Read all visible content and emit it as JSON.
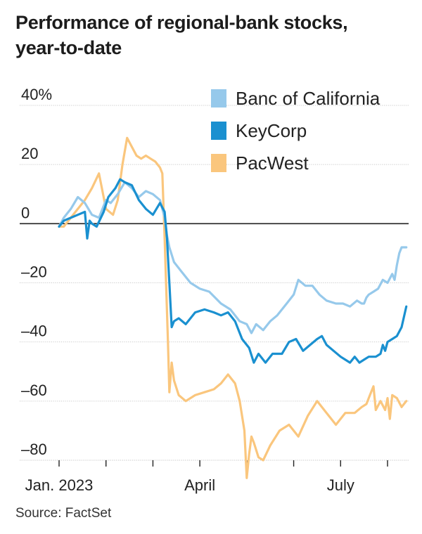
{
  "chart_data": {
    "type": "line",
    "title_lines": [
      "Performance of regional-bank stocks,",
      "year-to-date"
    ],
    "source": "Source: FactSet",
    "xlabel": "",
    "ylabel": "",
    "ylim": [
      -80,
      40
    ],
    "xlim": [
      0,
      7.45
    ],
    "y_ticks": [
      {
        "value": 40,
        "label": "40%"
      },
      {
        "value": 20,
        "label": "20"
      },
      {
        "value": 0,
        "label": "0"
      },
      {
        "value": -20,
        "label": "–20"
      },
      {
        "value": -40,
        "label": "–40"
      },
      {
        "value": -60,
        "label": "–60"
      },
      {
        "value": -80,
        "label": "–80"
      }
    ],
    "x_ticks": [
      0,
      1,
      2,
      3,
      4,
      5,
      6,
      7
    ],
    "x_labels": [
      {
        "value": 0,
        "label": "Jan. 2023"
      },
      {
        "value": 3,
        "label": "April"
      },
      {
        "value": 6,
        "label": "July"
      }
    ],
    "series": [
      {
        "name": "PacWest",
        "color": "#fac67d",
        "x": [
          0,
          0.1,
          0.25,
          0.4,
          0.55,
          0.7,
          0.85,
          1.0,
          1.15,
          1.25,
          1.35,
          1.45,
          1.55,
          1.65,
          1.75,
          1.85,
          1.95,
          2.05,
          2.15,
          2.2,
          2.25,
          2.28,
          2.32,
          2.35,
          2.4,
          2.45,
          2.55,
          2.7,
          2.9,
          3.1,
          3.3,
          3.45,
          3.6,
          3.75,
          3.85,
          3.95,
          4.0,
          4.05,
          4.1,
          4.15,
          4.25,
          4.35,
          4.5,
          4.7,
          4.9,
          5.1,
          5.3,
          5.5,
          5.7,
          5.9,
          6.1,
          6.3,
          6.45,
          6.55,
          6.6,
          6.65,
          6.7,
          6.75,
          6.85,
          6.95,
          7.0,
          7.05,
          7.1,
          7.2,
          7.3,
          7.4
        ],
        "values": [
          -1,
          -1,
          2,
          5,
          8,
          12,
          17,
          5,
          3,
          8,
          20,
          29,
          26,
          23,
          22,
          23,
          22,
          21,
          19,
          17,
          -5,
          -20,
          -40,
          -57,
          -47,
          -53,
          -58,
          -60,
          -58,
          -57,
          -56,
          -54,
          -51,
          -54,
          -60,
          -70,
          -86,
          -78,
          -72,
          -74,
          -79,
          -80,
          -75,
          -70,
          -68,
          -72,
          -65,
          -60,
          -64,
          -68,
          -64,
          -64,
          -62,
          -61,
          -59,
          -57,
          -55,
          -63,
          -60,
          -63,
          -59,
          -66,
          -58,
          -59,
          -62,
          -60
        ]
      },
      {
        "name": "Banc of California",
        "color": "#96c9eb",
        "x": [
          0,
          0.1,
          0.25,
          0.4,
          0.55,
          0.7,
          0.85,
          1.0,
          1.1,
          1.25,
          1.4,
          1.55,
          1.7,
          1.85,
          2.0,
          2.15,
          2.25,
          2.3,
          2.35,
          2.45,
          2.6,
          2.8,
          3.0,
          3.2,
          3.45,
          3.65,
          3.85,
          4.0,
          4.1,
          4.2,
          4.35,
          4.5,
          4.65,
          4.85,
          5.0,
          5.1,
          5.25,
          5.4,
          5.55,
          5.7,
          5.9,
          6.05,
          6.2,
          6.35,
          6.45,
          6.5,
          6.55,
          6.6,
          6.7,
          6.8,
          6.9,
          7.0,
          7.1,
          7.15,
          7.2,
          7.25,
          7.3,
          7.4
        ],
        "values": [
          -1,
          2,
          5,
          9,
          7,
          3,
          2,
          8,
          7,
          10,
          14,
          12,
          9,
          11,
          10,
          8,
          2,
          -4,
          -8,
          -13,
          -16,
          -20,
          -22,
          -23,
          -27,
          -29,
          -33,
          -34,
          -37,
          -34,
          -36,
          -33,
          -31,
          -27,
          -24,
          -19,
          -21,
          -21,
          -24,
          -26,
          -27,
          -27,
          -28,
          -26,
          -27,
          -27,
          -25,
          -24,
          -23,
          -22,
          -19,
          -20,
          -17,
          -19,
          -14,
          -10,
          -8,
          -8
        ]
      },
      {
        "name": "KeyCorp",
        "color": "#1a90d0",
        "x": [
          0,
          0.1,
          0.25,
          0.4,
          0.55,
          0.6,
          0.65,
          0.7,
          0.8,
          0.95,
          1.05,
          1.2,
          1.3,
          1.4,
          1.55,
          1.7,
          1.85,
          2.0,
          2.15,
          2.25,
          2.3,
          2.35,
          2.4,
          2.45,
          2.55,
          2.7,
          2.9,
          3.1,
          3.3,
          3.45,
          3.6,
          3.75,
          3.9,
          4.05,
          4.15,
          4.25,
          4.4,
          4.55,
          4.75,
          4.9,
          5.05,
          5.2,
          5.35,
          5.5,
          5.6,
          5.7,
          5.85,
          6.0,
          6.1,
          6.2,
          6.3,
          6.4,
          6.5,
          6.6,
          6.75,
          6.85,
          6.9,
          6.95,
          7.0,
          7.1,
          7.2,
          7.3,
          7.4
        ],
        "values": [
          -1,
          1,
          2,
          3,
          4,
          -5,
          1,
          0,
          -1,
          4,
          9,
          12,
          15,
          14,
          13,
          8,
          5,
          3,
          7,
          4,
          -5,
          -20,
          -35,
          -33,
          -32,
          -34,
          -30,
          -29,
          -30,
          -31,
          -30,
          -33,
          -39,
          -42,
          -47,
          -44,
          -47,
          -44,
          -44,
          -40,
          -39,
          -43,
          -41,
          -39,
          -38,
          -41,
          -43,
          -45,
          -46,
          -47,
          -45,
          -47,
          -46,
          -45,
          -45,
          -44,
          -41,
          -43,
          -40,
          -39,
          -38,
          -35,
          -28
        ]
      }
    ]
  },
  "legend": [
    {
      "label": "Banc of California",
      "color": "#96c9eb"
    },
    {
      "label": "KeyCorp",
      "color": "#1a90d0"
    },
    {
      "label": "PacWest",
      "color": "#fac67d"
    }
  ]
}
